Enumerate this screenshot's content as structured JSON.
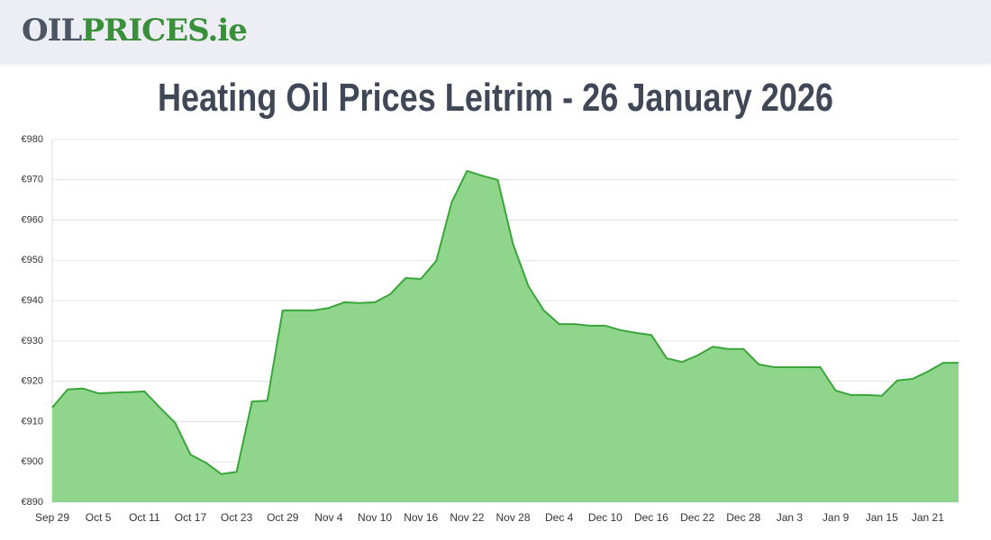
{
  "header": {
    "logo": [
      "OIL",
      "PRICES.ie"
    ]
  },
  "chart_data": {
    "type": "area",
    "title": "Heating Oil Prices Leitrim - 26 January 2026",
    "categories": [
      "Sep 29",
      null,
      null,
      "Oct 5",
      null,
      null,
      "Oct 11",
      null,
      null,
      "Oct 17",
      null,
      null,
      "Oct 23",
      null,
      null,
      "Oct 29",
      null,
      null,
      "Nov 4",
      null,
      null,
      "Nov 10",
      null,
      null,
      "Nov 16",
      null,
      null,
      "Nov 22",
      null,
      null,
      "Nov 28",
      null,
      null,
      "Dec 4",
      null,
      null,
      "Dec 10",
      null,
      null,
      "Dec 16",
      null,
      null,
      "Dec 22",
      null,
      null,
      "Dec 28",
      null,
      null,
      "Jan 3",
      null,
      null,
      "Jan 9",
      null,
      null,
      "Jan 15",
      null,
      null,
      "Jan 21",
      null,
      null
    ],
    "values": [
      913.5,
      918,
      918.2,
      917,
      917.2,
      917.3,
      917.5,
      913.5,
      909.7,
      901.8,
      899.8,
      897,
      897.5,
      915,
      915.2,
      937.6,
      937.6,
      937.6,
      938.2,
      939.6,
      939.4,
      939.6,
      941.6,
      945.6,
      945.4,
      949.9,
      964.4,
      972.2,
      971,
      970,
      954,
      943.6,
      937.6,
      934.2,
      934.2,
      933.8,
      933.8,
      932.7,
      932,
      931.5,
      925.7,
      924.8,
      926.4,
      928.6,
      928,
      928,
      924.2,
      923.5,
      923.5,
      923.5,
      923.5,
      917.7,
      916.6,
      916.6,
      916.4,
      920.2,
      920.6,
      922.4,
      924.6,
      924.6
    ],
    "color": "#3aa53a",
    "fill_color": "#90d58c",
    "ylim": [
      890,
      980
    ],
    "yticks": [
      {
        "value": 890,
        "label": "€890"
      },
      {
        "value": 900,
        "label": "€900"
      },
      {
        "value": 910,
        "label": "€910"
      },
      {
        "value": 920,
        "label": "€920"
      },
      {
        "value": 930,
        "label": "€930"
      },
      {
        "value": 940,
        "label": "€940"
      },
      {
        "value": 950,
        "label": "€950"
      },
      {
        "value": 960,
        "label": "€960"
      },
      {
        "value": 970,
        "label": "€970"
      },
      {
        "value": 980,
        "label": "€980"
      }
    ],
    "grid": true
  }
}
